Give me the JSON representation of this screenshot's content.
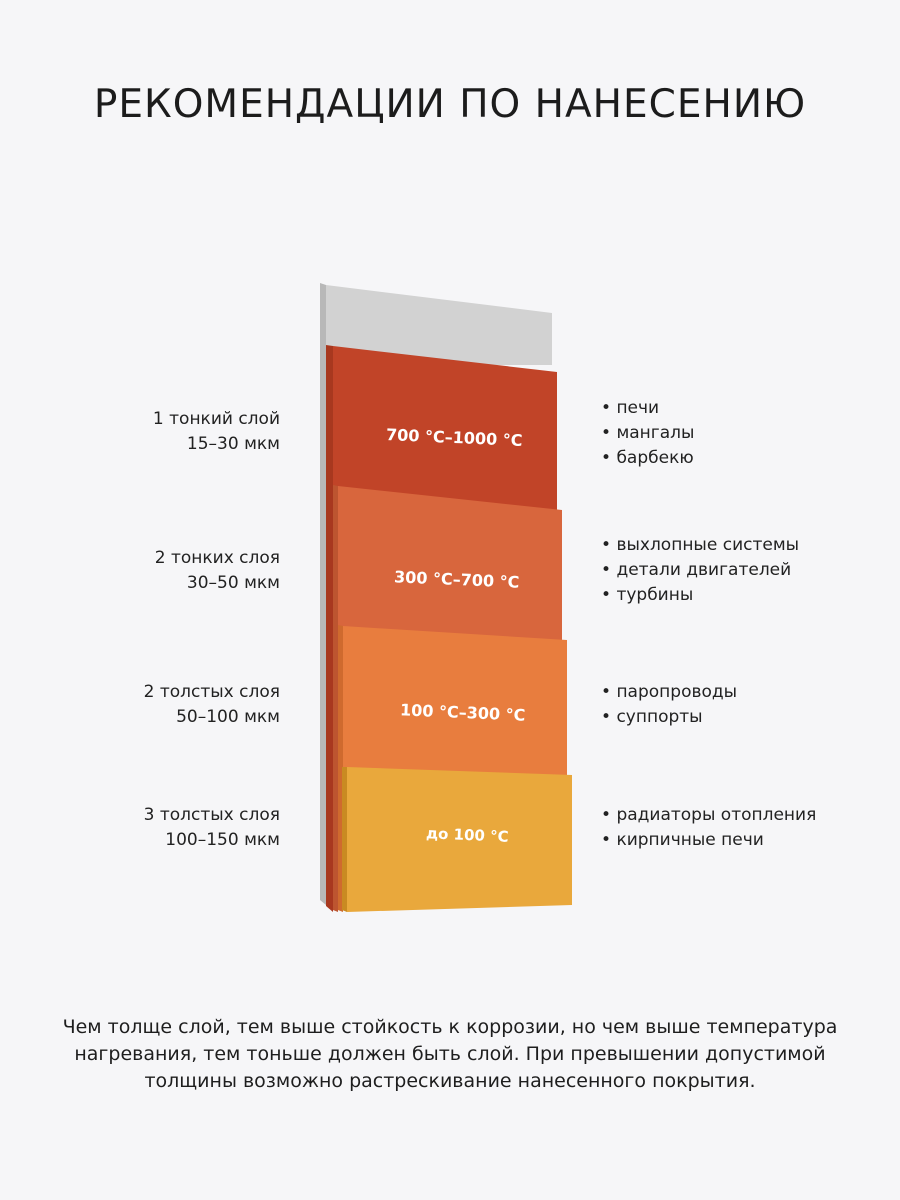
{
  "title": "РЕКОМЕНДАЦИИ ПО НАНЕСЕНИЮ",
  "colors": {
    "base": "#d2d2d2",
    "layer1": "#c14428",
    "layer2": "#d8663d",
    "layer3": "#e87d3e",
    "layer4": "#e9a83c"
  },
  "layers": [
    {
      "coats": "1 тонкий слой",
      "thickness": "15–30 мкм",
      "temperature": "700 °C–1000 °C",
      "uses": [
        "печи",
        "мангалы",
        "барбекю"
      ]
    },
    {
      "coats": "2 тонких слоя",
      "thickness": "30–50 мкм",
      "temperature": "300 °C–700 °C",
      "uses": [
        "выхлопные системы",
        "детали двигателей",
        "турбины"
      ]
    },
    {
      "coats": "2 толстых слоя",
      "thickness": "50–100 мкм",
      "temperature": "100 °C–300 °C",
      "uses": [
        "паропроводы",
        "суппорты"
      ]
    },
    {
      "coats": "3 толстых слоя",
      "thickness": "100–150 мкм",
      "temperature": "до 100 °C",
      "uses": [
        "радиаторы отопления",
        "кирпичные печи"
      ]
    }
  ],
  "footer": "Чем толще слой, тем выше стойкость к коррозии, но чем выше температура нагревания, тем тоньше должен быть слой. При превышении допустимой толщины возможно растрескивание нанесенного покрытия."
}
